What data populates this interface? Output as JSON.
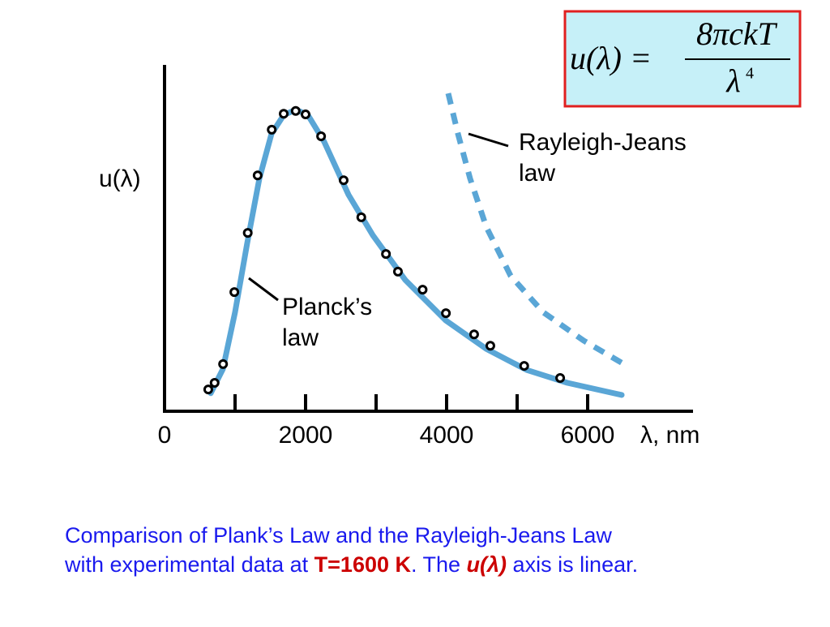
{
  "chart_data": {
    "type": "line",
    "xlim": [
      0,
      7500
    ],
    "ylim": [
      0,
      100
    ],
    "xticks": [
      0,
      2000,
      4000,
      6000
    ],
    "x_minor_ticks": [
      1000,
      3000,
      5000
    ],
    "xlabel": "λ, nm",
    "ylabel": "u(λ)",
    "series": [
      {
        "style": "solid",
        "color": "#5aa6d6",
        "x": [
          655,
          828,
          1000,
          1172,
          1345,
          1517,
          1690,
          1862,
          2034,
          2264,
          2609,
          2954,
          3414,
          3989,
          4563,
          5138,
          5713,
          6483
        ],
        "values": [
          5.2,
          12.2,
          28.6,
          48.5,
          67.2,
          80.1,
          85.5,
          87.1,
          85.5,
          77.8,
          62.5,
          50.8,
          37.9,
          26.2,
          18.0,
          11.9,
          8.2,
          4.7
        ]
      },
      {
        "style": "dashed",
        "color": "#5aa6d6",
        "x": [
          4023,
          4161,
          4333,
          4563,
          4908,
          5368,
          5943,
          6575
        ],
        "values": [
          91.8,
          80.1,
          67.2,
          53.2,
          39.1,
          28.6,
          20.4,
          12.9
        ]
      },
      {
        "style": "markers",
        "color": "#000000",
        "x": [
          620,
          710,
          830,
          990,
          1180,
          1320,
          1520,
          1690,
          1860,
          2000,
          2220,
          2540,
          2790,
          3140,
          3310,
          3660,
          3990,
          4390,
          4620,
          5100,
          5610
        ],
        "values": [
          6.3,
          8.2,
          13.6,
          34.4,
          51.5,
          68.1,
          81.3,
          85.9,
          86.7,
          85.7,
          79.4,
          66.7,
          56.0,
          45.4,
          40.3,
          35.1,
          28.3,
          22.2,
          18.9,
          13.1,
          9.6
        ]
      }
    ],
    "annotations": [
      {
        "lines": [
          "Rayleigh-Jeans",
          "law"
        ]
      },
      {
        "lines": [
          "Planck’s",
          "law"
        ]
      }
    ],
    "formula": {
      "lhs": "u(λ) =",
      "numerator": "8πckT",
      "denominator": "λ",
      "exponent": "4"
    },
    "caption": {
      "line1": "Comparison of Plank’s Law and the Rayleigh-Jeans Law",
      "line2": [
        {
          "text": "with experimental data at ",
          "color": "#1a1aee"
        },
        {
          "text": "T=1600 K",
          "color": "#cc0000",
          "bold": true
        },
        {
          "text": ". The ",
          "color": "#1a1aee"
        },
        {
          "text": "u(λ)",
          "color": "#cc0000",
          "italic": true
        },
        {
          "text": " axis is linear.",
          "color": "#1a1aee"
        }
      ]
    }
  }
}
